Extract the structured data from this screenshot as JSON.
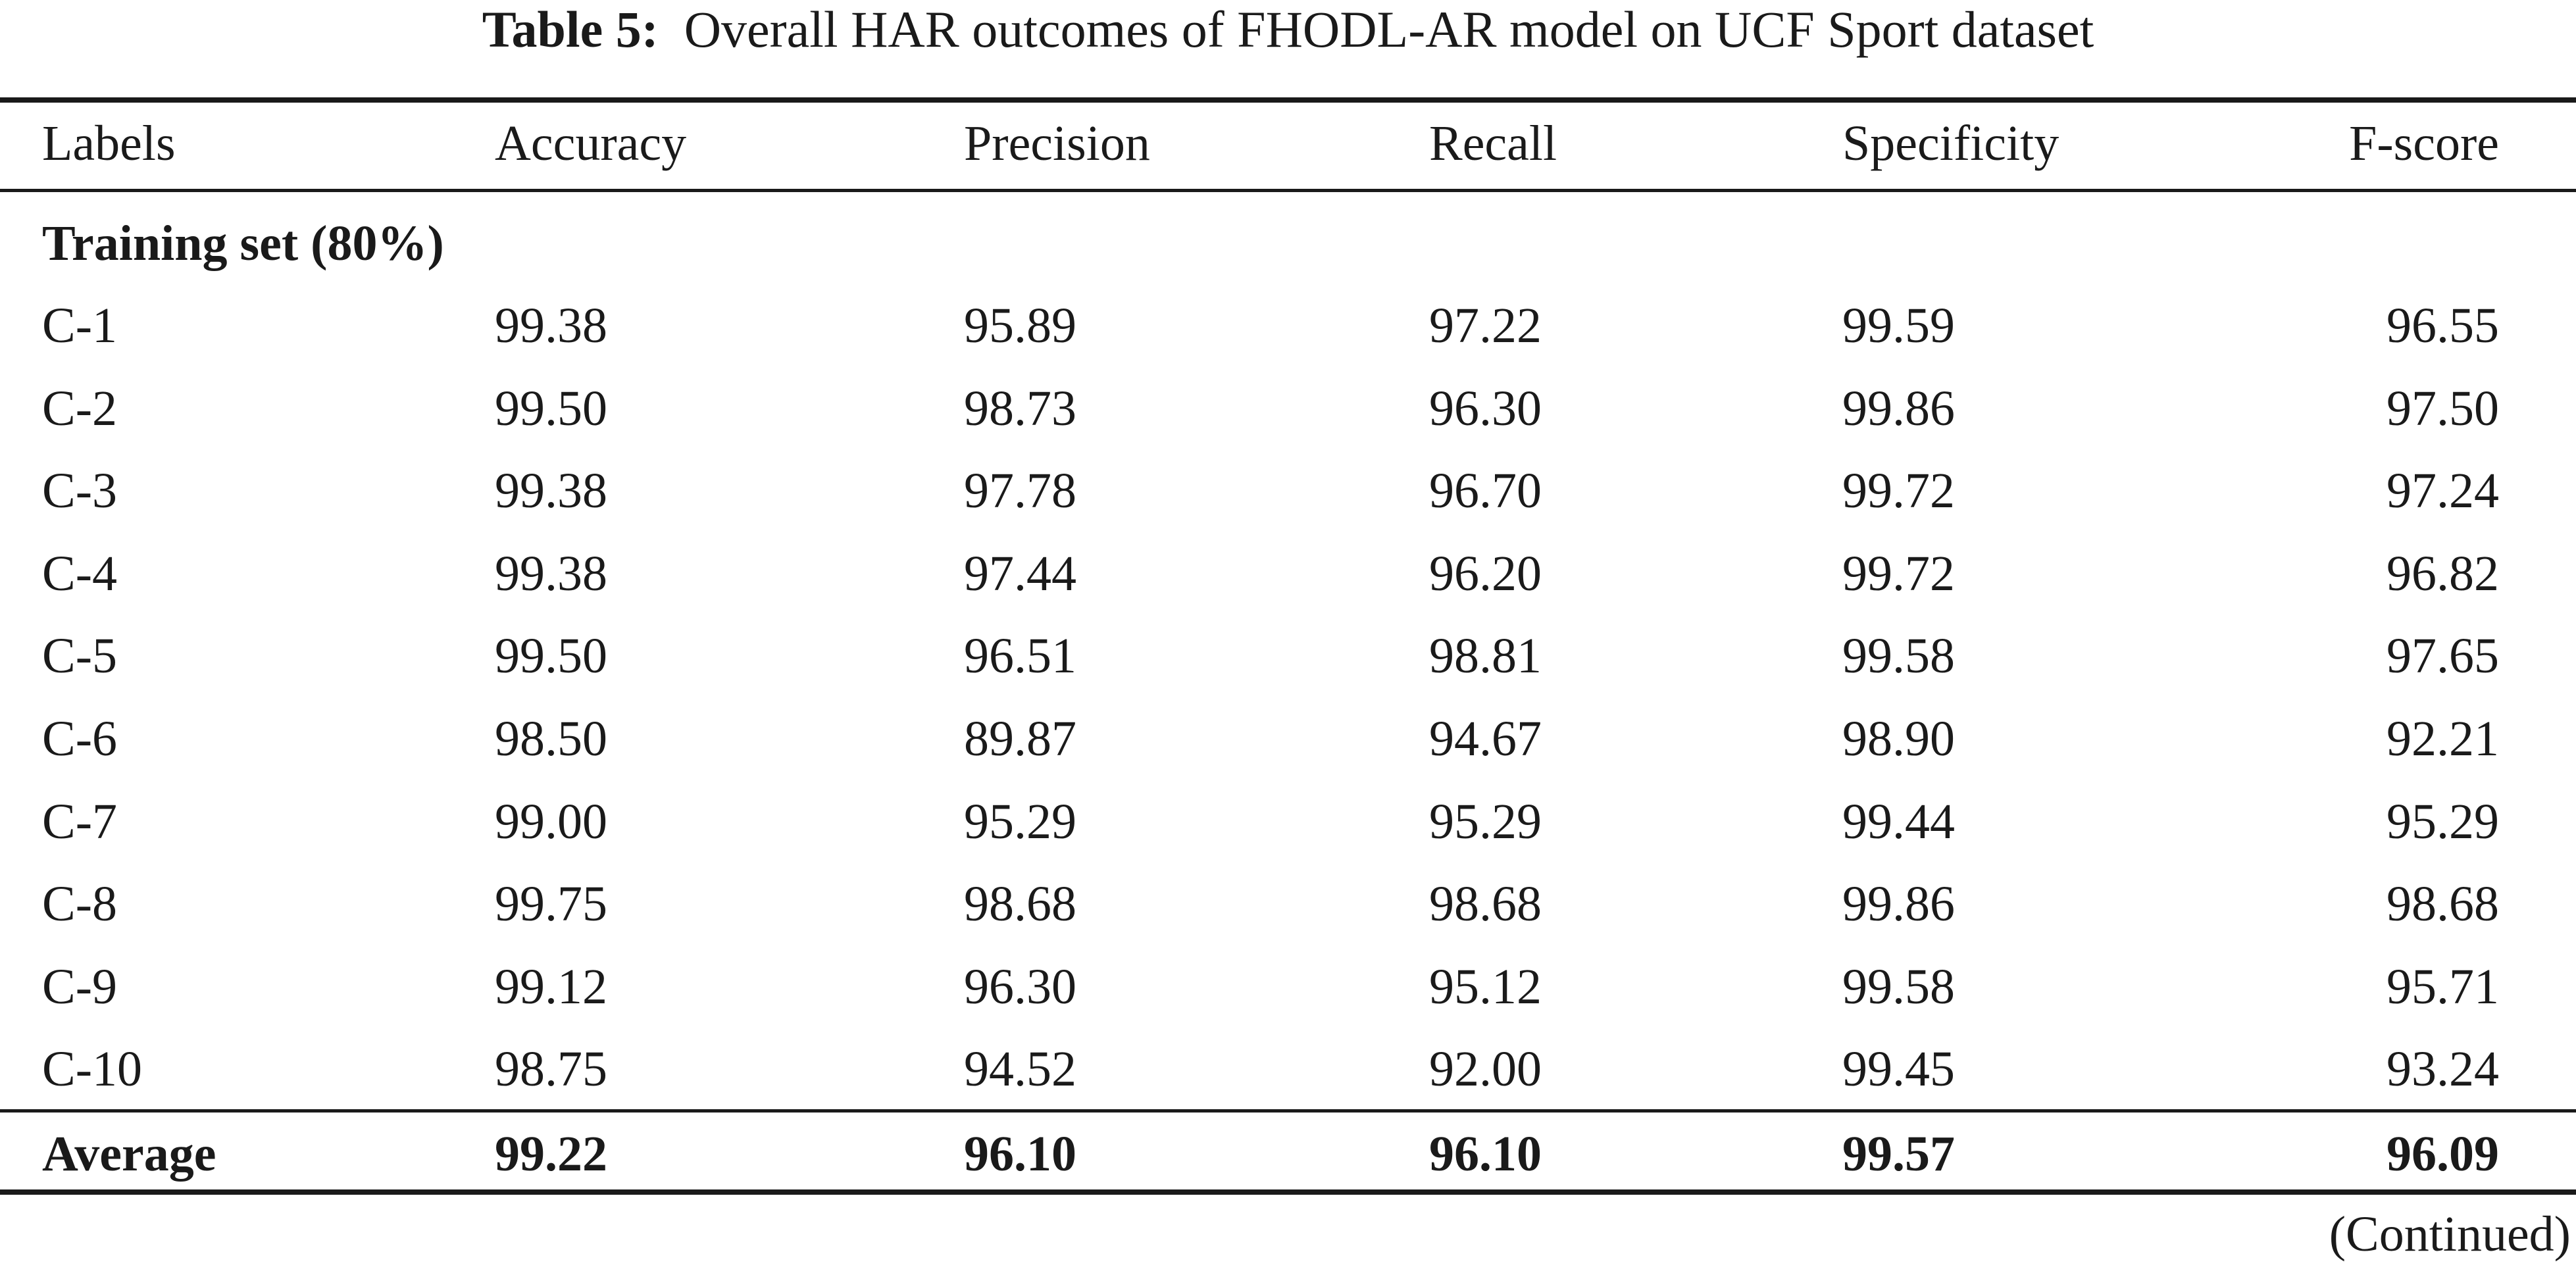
{
  "caption": {
    "label": "Table 5:",
    "text": "Overall HAR outcomes of FHODL-AR model on UCF Sport dataset"
  },
  "table": {
    "headers": [
      "Labels",
      "Accuracy",
      "Precision",
      "Recall",
      "Specificity",
      "F-score"
    ],
    "section_title": "Training set (80%)",
    "rows": [
      [
        "C-1",
        "99.38",
        "95.89",
        "97.22",
        "99.59",
        "96.55"
      ],
      [
        "C-2",
        "99.50",
        "98.73",
        "96.30",
        "99.86",
        "97.50"
      ],
      [
        "C-3",
        "99.38",
        "97.78",
        "96.70",
        "99.72",
        "97.24"
      ],
      [
        "C-4",
        "99.38",
        "97.44",
        "96.20",
        "99.72",
        "96.82"
      ],
      [
        "C-5",
        "99.50",
        "96.51",
        "98.81",
        "99.58",
        "97.65"
      ],
      [
        "C-6",
        "98.50",
        "89.87",
        "94.67",
        "98.90",
        "92.21"
      ],
      [
        "C-7",
        "99.00",
        "95.29",
        "95.29",
        "99.44",
        "95.29"
      ],
      [
        "C-8",
        "99.75",
        "98.68",
        "98.68",
        "99.86",
        "98.68"
      ],
      [
        "C-9",
        "99.12",
        "96.30",
        "95.12",
        "99.58",
        "95.71"
      ],
      [
        "C-10",
        "98.75",
        "94.52",
        "92.00",
        "99.45",
        "93.24"
      ]
    ],
    "average": [
      "Average",
      "99.22",
      "96.10",
      "96.10",
      "99.57",
      "96.09"
    ]
  },
  "continued": "(Continued)"
}
